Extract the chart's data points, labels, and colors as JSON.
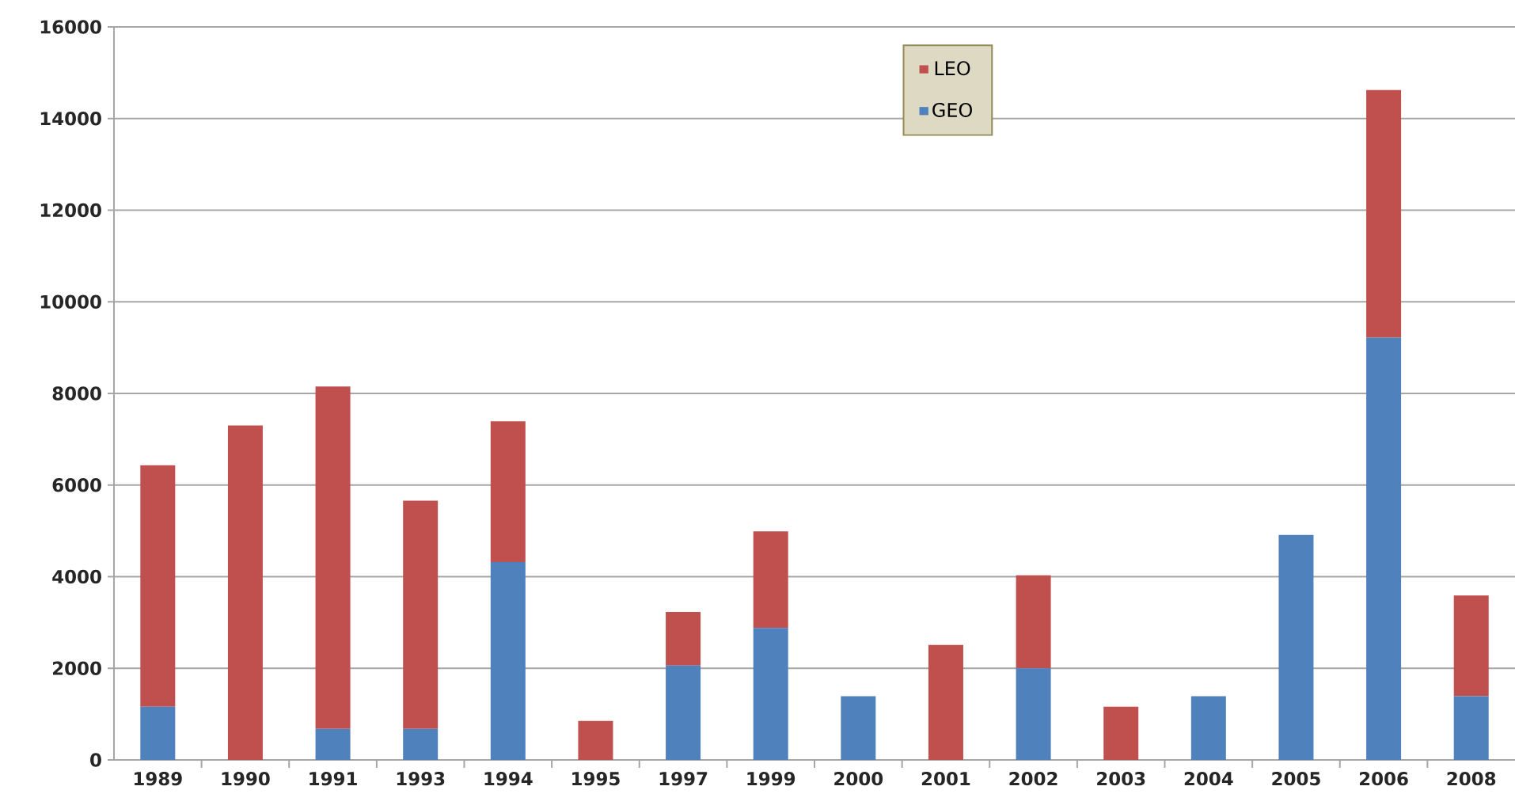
{
  "chart_data": {
    "type": "bar",
    "stacked": true,
    "categories": [
      "1989",
      "1990",
      "1991",
      "1993",
      "1994",
      "1995",
      "1997",
      "1999",
      "2000",
      "2001",
      "2002",
      "2003",
      "2004",
      "2005",
      "2006",
      "2008"
    ],
    "series": [
      {
        "name": "GEO",
        "color": "#4f81bd",
        "values": [
          1160,
          0,
          680,
          680,
          4320,
          0,
          2060,
          2880,
          1390,
          0,
          2000,
          0,
          1390,
          4910,
          9220,
          1390
        ]
      },
      {
        "name": "LEO",
        "color": "#c0504d",
        "values": [
          5270,
          7300,
          7470,
          4980,
          3070,
          850,
          1170,
          2110,
          0,
          2510,
          2030,
          1160,
          0,
          0,
          5400,
          2200
        ]
      }
    ],
    "ylim": [
      0,
      16000
    ],
    "yticks": [
      0,
      2000,
      4000,
      6000,
      8000,
      10000,
      12000,
      14000,
      16000
    ],
    "grid": "y",
    "legend": "top"
  }
}
